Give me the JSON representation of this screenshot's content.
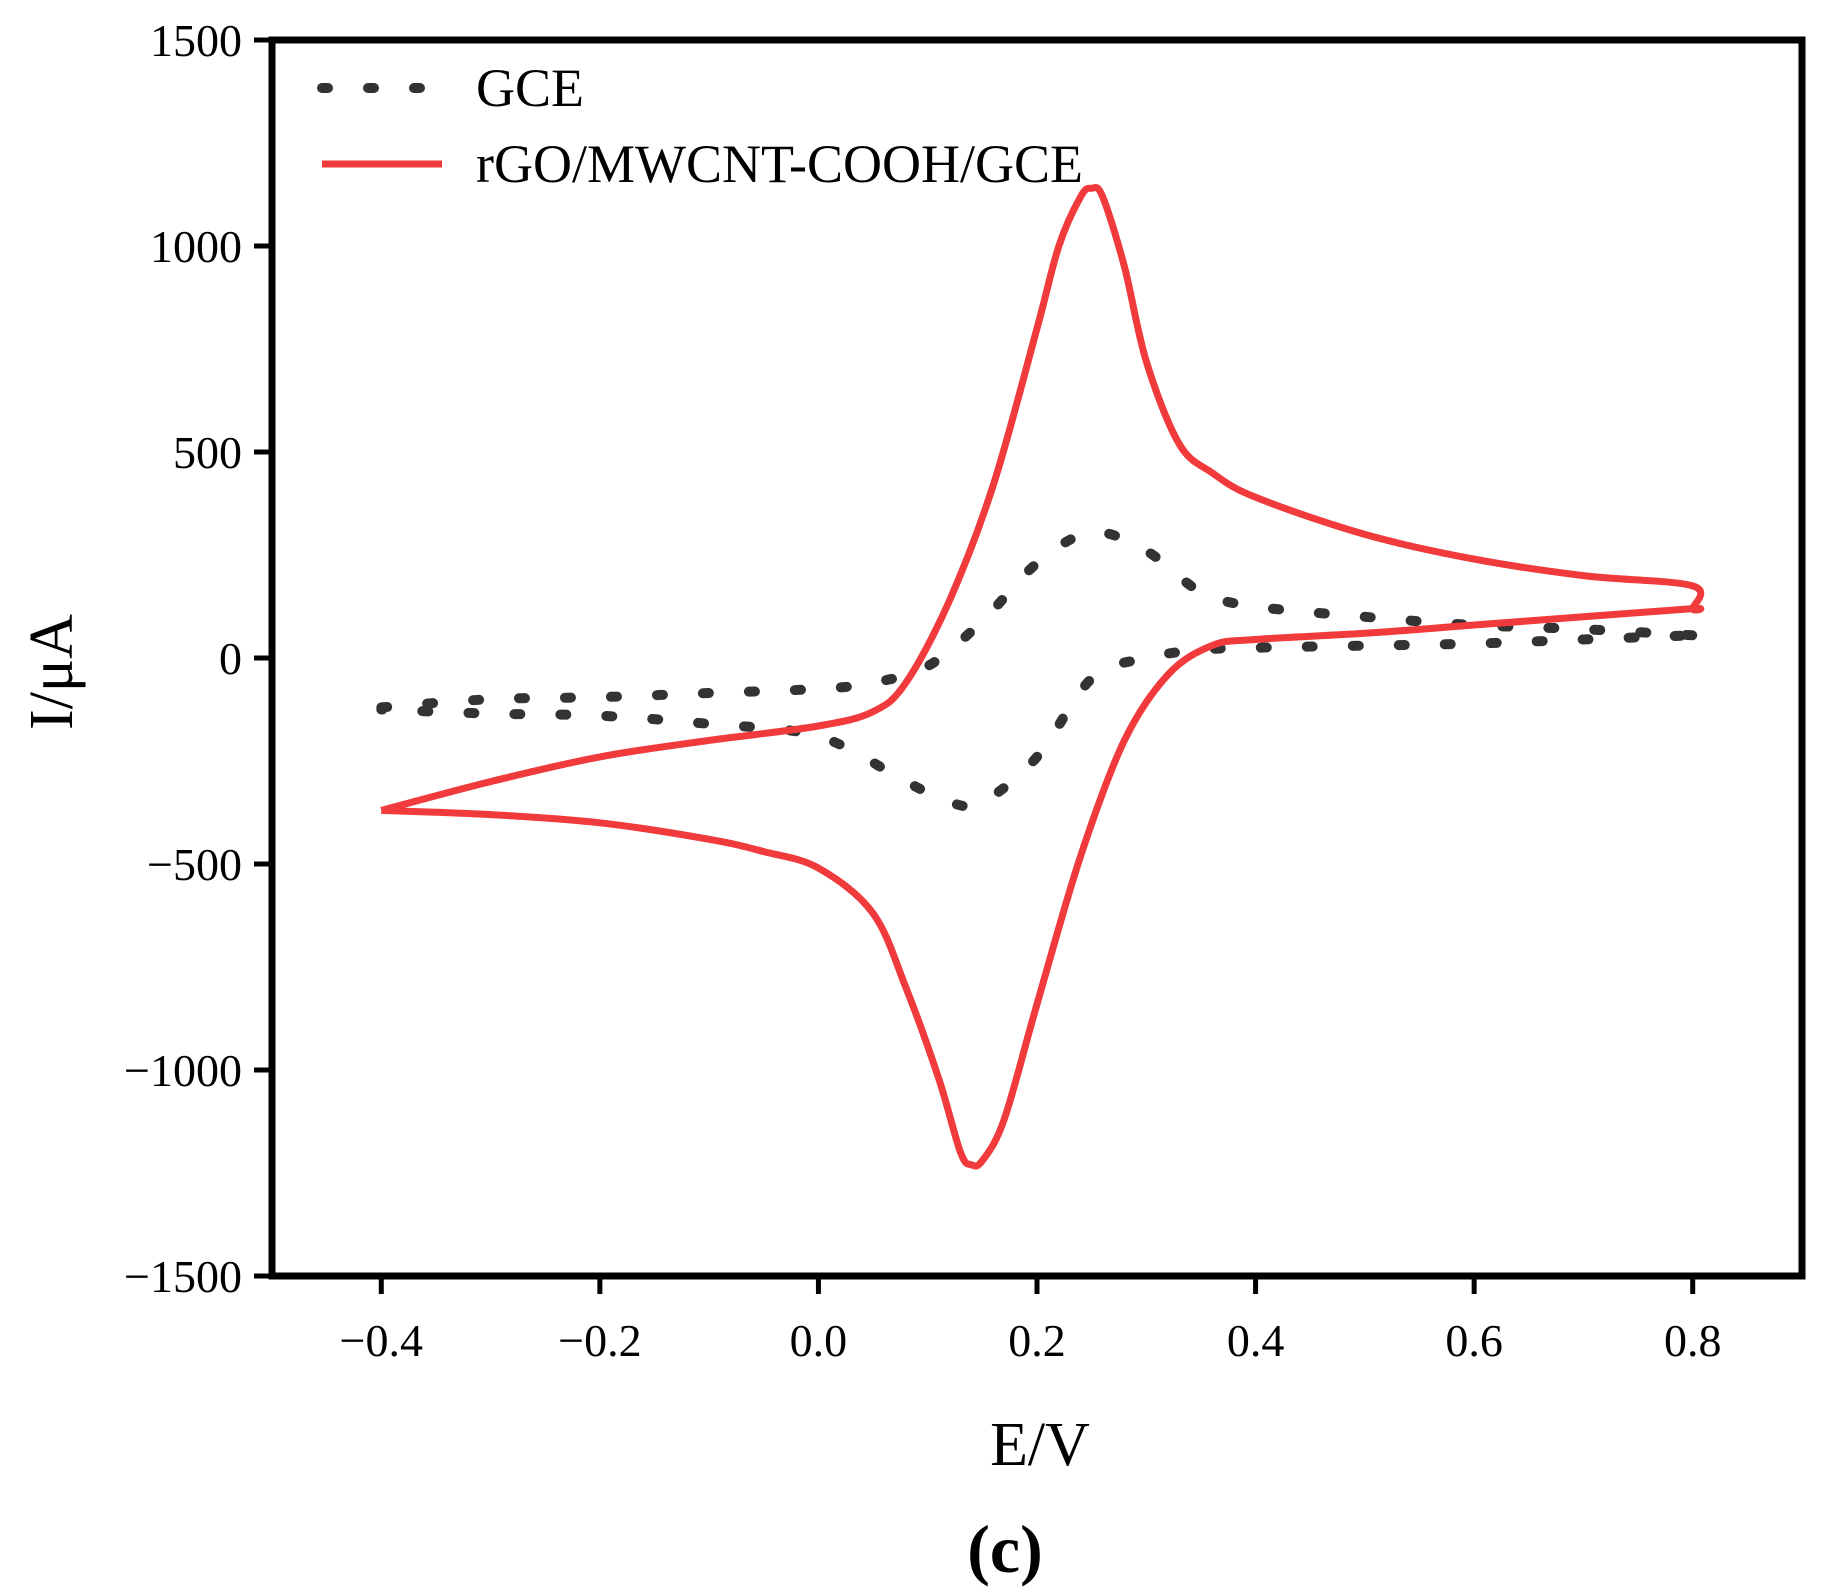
{
  "chart_data": {
    "type": "line",
    "title": "",
    "xlabel": "E/V",
    "ylabel": "I/μA",
    "panel_label": "(c)",
    "xlim": [
      -0.5,
      0.9
    ],
    "ylim": [
      -1500,
      1500
    ],
    "x_ticks": [
      -0.4,
      -0.2,
      0.0,
      0.2,
      0.4,
      0.6,
      0.8
    ],
    "x_tick_labels": [
      "−0.4",
      "−0.2",
      "0.0",
      "0.2",
      "0.4",
      "0.6",
      "0.8"
    ],
    "y_ticks": [
      -1500,
      -1000,
      -500,
      0,
      500,
      1000,
      1500
    ],
    "y_tick_labels": [
      "−1500",
      "−1000",
      "−500",
      "0",
      "500",
      "1000",
      "1500"
    ],
    "grid": false,
    "legend_position": "top-left",
    "series": [
      {
        "name": "GCE",
        "color": "#333333",
        "style": "dotted",
        "x": [
          -0.4,
          -0.3,
          -0.2,
          -0.1,
          0.0,
          0.05,
          0.1,
          0.15,
          0.2,
          0.25,
          0.3,
          0.35,
          0.4,
          0.5,
          0.6,
          0.7,
          0.8,
          0.8,
          0.7,
          0.6,
          0.5,
          0.4,
          0.35,
          0.3,
          0.25,
          0.2,
          0.15,
          0.12,
          0.08,
          0.0,
          -0.1,
          -0.2,
          -0.3,
          -0.4
        ],
        "y": [
          -120,
          -100,
          -95,
          -85,
          -75,
          -60,
          -20,
          90,
          230,
          305,
          260,
          160,
          125,
          100,
          80,
          70,
          55,
          55,
          45,
          35,
          30,
          25,
          20,
          0,
          -50,
          -240,
          -350,
          -350,
          -300,
          -190,
          -160,
          -140,
          -135,
          -125
        ]
      },
      {
        "name": "rGO/MWCNT-COOH/GCE",
        "color": "#f03a3c",
        "style": "solid",
        "x": [
          -0.4,
          -0.3,
          -0.2,
          -0.1,
          0.0,
          0.05,
          0.08,
          0.12,
          0.16,
          0.2,
          0.22,
          0.24,
          0.25,
          0.26,
          0.28,
          0.3,
          0.33,
          0.36,
          0.4,
          0.5,
          0.6,
          0.7,
          0.8,
          0.8,
          0.8,
          0.7,
          0.6,
          0.5,
          0.4,
          0.36,
          0.32,
          0.28,
          0.24,
          0.2,
          0.17,
          0.15,
          0.14,
          0.13,
          0.11,
          0.08,
          0.05,
          0.0,
          -0.05,
          -0.1,
          -0.2,
          -0.3,
          -0.4
        ],
        "y": [
          -370,
          -300,
          -240,
          -200,
          -165,
          -130,
          -60,
          140,
          420,
          800,
          1000,
          1120,
          1140,
          1120,
          950,
          720,
          520,
          450,
          390,
          300,
          240,
          200,
          175,
          120,
          120,
          100,
          80,
          60,
          45,
          30,
          -40,
          -200,
          -480,
          -840,
          -1120,
          -1220,
          -1230,
          -1200,
          -1020,
          -800,
          -620,
          -510,
          -470,
          -440,
          -400,
          -380,
          -370
        ]
      }
    ]
  }
}
